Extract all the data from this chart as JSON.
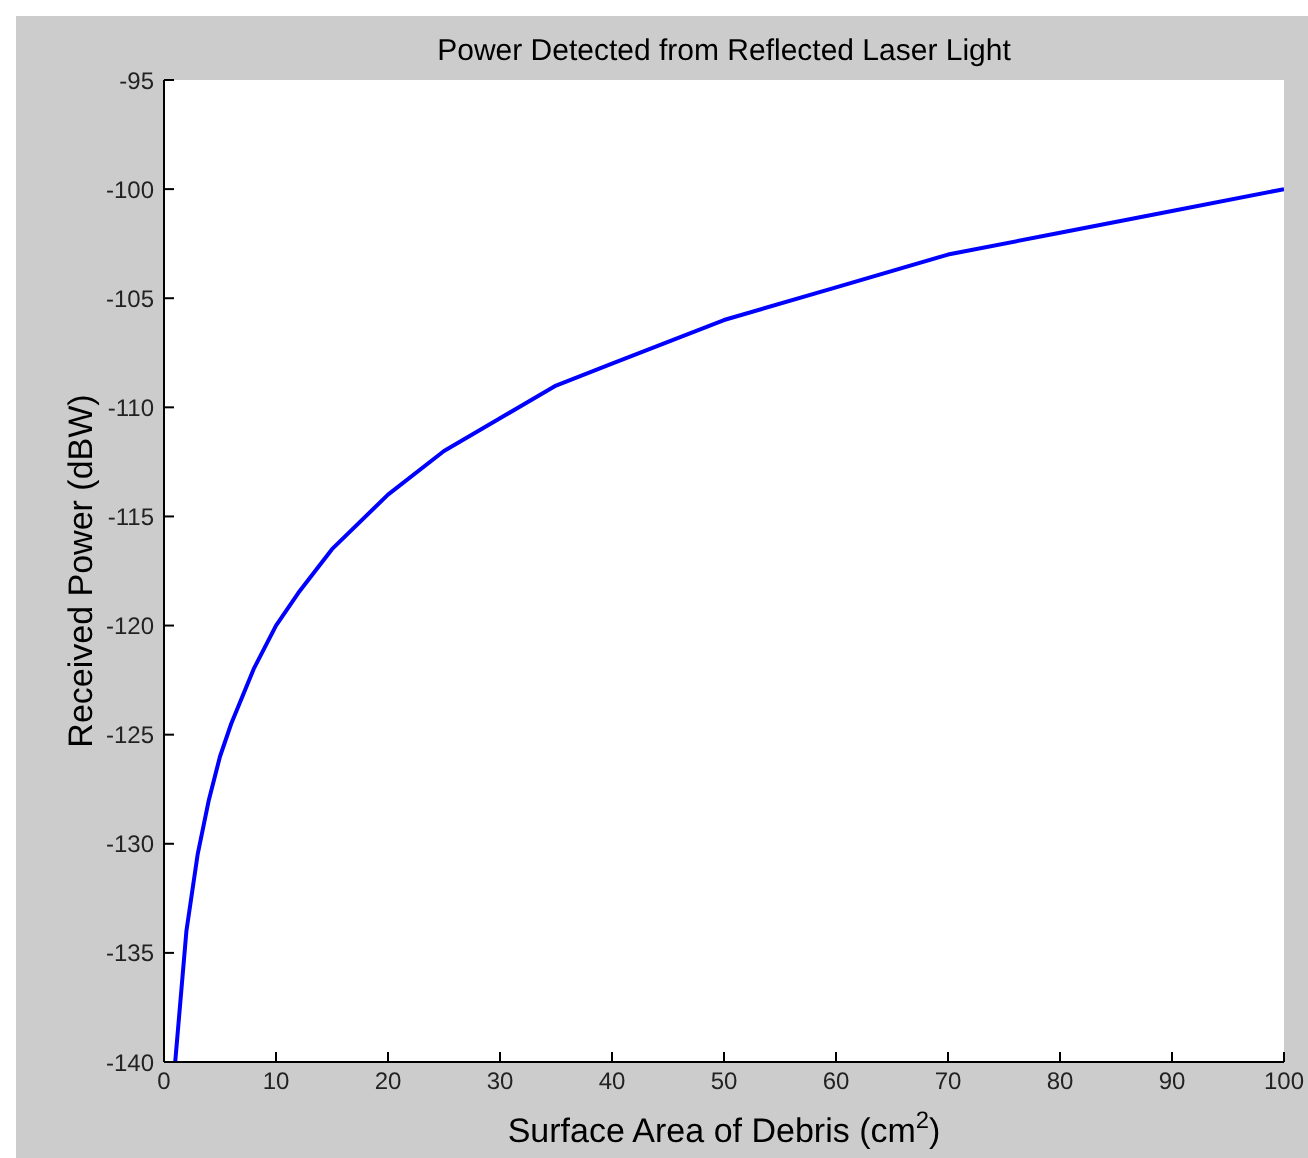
{
  "chart_data": {
    "type": "line",
    "title": "Power Detected from Reflected Laser Light",
    "xlabel": "Surface Area of Debris (cm$^{2}$)",
    "ylabel": "Received Power (dBW)",
    "x": [
      1,
      2,
      3,
      4,
      5,
      6,
      8,
      10,
      12,
      15,
      20,
      25,
      30,
      35,
      40,
      45,
      50,
      60,
      70,
      80,
      90,
      100
    ],
    "series": [
      {
        "color": "#0000ff",
        "values": [
          -140,
          -134,
          -130.5,
          -128,
          -126,
          -124.5,
          -122,
          -120,
          -118.5,
          -116.5,
          -114,
          -112,
          -110.5,
          -109,
          -108,
          -107,
          -106,
          -104.5,
          -103,
          -102,
          -101,
          -100
        ]
      }
    ],
    "xlim": [
      0,
      100
    ],
    "xticks": [
      0,
      10,
      20,
      30,
      40,
      50,
      60,
      70,
      80,
      90,
      100
    ],
    "ylim": [
      -140,
      -95
    ],
    "yticks": [
      -140,
      -135,
      -130,
      -125,
      -120,
      -115,
      -110,
      -105,
      -100,
      -95
    ],
    "grid": false,
    "legend": false,
    "marker": "none",
    "line_style": "solid"
  }
}
